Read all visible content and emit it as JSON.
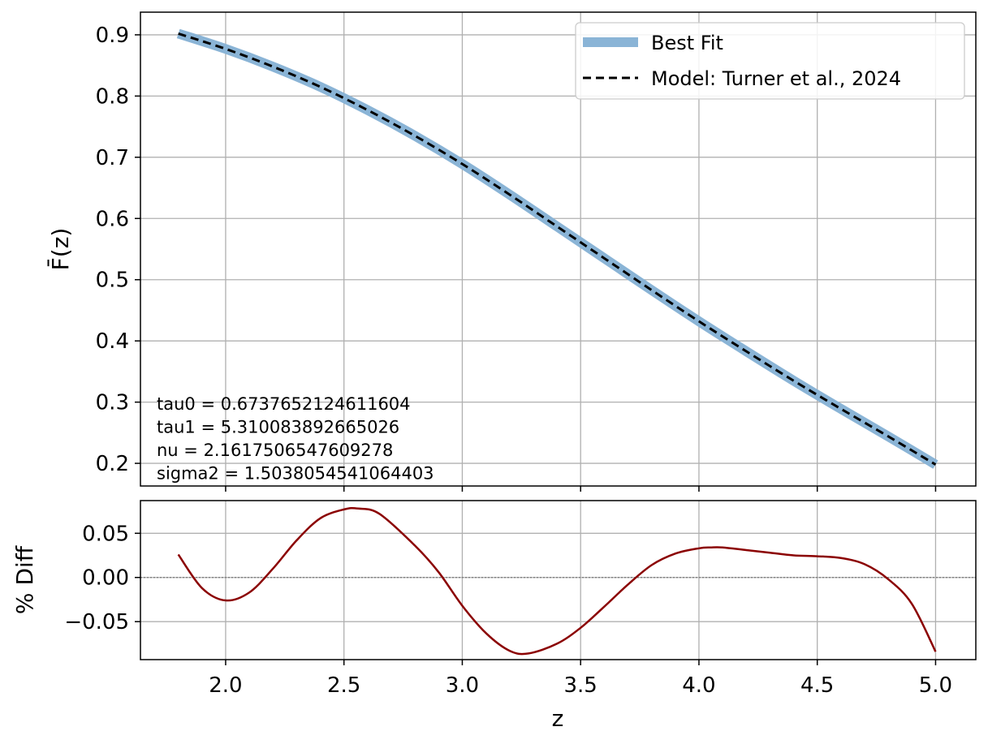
{
  "chart_data": [
    {
      "type": "line",
      "panel": "top",
      "xlabel": "",
      "ylabel": "F̄(z)",
      "xlim": [
        1.64,
        5.17
      ],
      "ylim": [
        0.163,
        0.937
      ],
      "xticks": [
        2.0,
        2.5,
        3.0,
        3.5,
        4.0,
        4.5,
        5.0
      ],
      "yticks": [
        0.2,
        0.3,
        0.4,
        0.5,
        0.6,
        0.7,
        0.8,
        0.9
      ],
      "ytick_labels": [
        "0.2",
        "0.3",
        "0.4",
        "0.5",
        "0.6",
        "0.7",
        "0.8",
        "0.9"
      ],
      "grid": true,
      "legend_position": "top-right",
      "series": [
        {
          "name": "Best Fit",
          "color": "#8ab4d6",
          "style": "solid-thick",
          "x": [
            1.8,
            2.0,
            2.2,
            2.4,
            2.6,
            2.8,
            3.0,
            3.2,
            3.4,
            3.6,
            3.8,
            4.0,
            4.2,
            4.4,
            4.6,
            4.8,
            5.0
          ],
          "y": [
            0.902,
            0.877,
            0.848,
            0.815,
            0.777,
            0.735,
            0.689,
            0.639,
            0.587,
            0.535,
            0.483,
            0.432,
            0.383,
            0.335,
            0.289,
            0.244,
            0.198
          ]
        },
        {
          "name": "Model: Turner et al., 2024",
          "color": "#000000",
          "style": "dashed",
          "x": [
            1.8,
            2.0,
            2.2,
            2.4,
            2.6,
            2.8,
            3.0,
            3.2,
            3.4,
            3.6,
            3.8,
            4.0,
            4.2,
            4.4,
            4.6,
            4.8,
            5.0
          ],
          "y": [
            0.902,
            0.877,
            0.848,
            0.815,
            0.777,
            0.735,
            0.689,
            0.639,
            0.587,
            0.535,
            0.483,
            0.432,
            0.383,
            0.335,
            0.289,
            0.244,
            0.198
          ]
        }
      ],
      "annotations": [
        "tau0 = 0.6737652124611604",
        "tau1 = 5.310083892665026",
        "nu = 2.1617506547609278",
        "sigma2 = 1.5038054541064403"
      ]
    },
    {
      "type": "line",
      "panel": "bottom",
      "xlabel": "z",
      "ylabel": "% Diff",
      "xlim": [
        1.64,
        5.17
      ],
      "ylim": [
        -0.093,
        0.087
      ],
      "xticks": [
        2.0,
        2.5,
        3.0,
        3.5,
        4.0,
        4.5,
        5.0
      ],
      "xtick_labels": [
        "2.0",
        "2.5",
        "3.0",
        "3.5",
        "4.0",
        "4.5",
        "5.0"
      ],
      "yticks": [
        -0.05,
        0.0,
        0.05
      ],
      "ytick_labels": [
        "−0.05",
        "0.00",
        "0.05"
      ],
      "grid": true,
      "reference_line": 0.0,
      "series": [
        {
          "color": "#8b0000",
          "x": [
            1.8,
            1.9,
            2.0,
            2.1,
            2.2,
            2.3,
            2.4,
            2.5,
            2.56,
            2.65,
            2.8,
            2.9,
            3.0,
            3.1,
            3.2,
            3.28,
            3.4,
            3.5,
            3.6,
            3.7,
            3.8,
            3.9,
            4.0,
            4.05,
            4.1,
            4.2,
            4.3,
            4.4,
            4.5,
            4.6,
            4.7,
            4.8,
            4.9,
            5.0
          ],
          "y": [
            0.026,
            -0.012,
            -0.026,
            -0.017,
            0.01,
            0.042,
            0.067,
            0.077,
            0.078,
            0.072,
            0.036,
            0.006,
            -0.032,
            -0.063,
            -0.083,
            -0.086,
            -0.075,
            -0.057,
            -0.033,
            -0.008,
            0.014,
            0.027,
            0.033,
            0.034,
            0.034,
            0.031,
            0.028,
            0.025,
            0.024,
            0.022,
            0.015,
            -0.002,
            -0.03,
            -0.084
          ]
        }
      ]
    }
  ]
}
